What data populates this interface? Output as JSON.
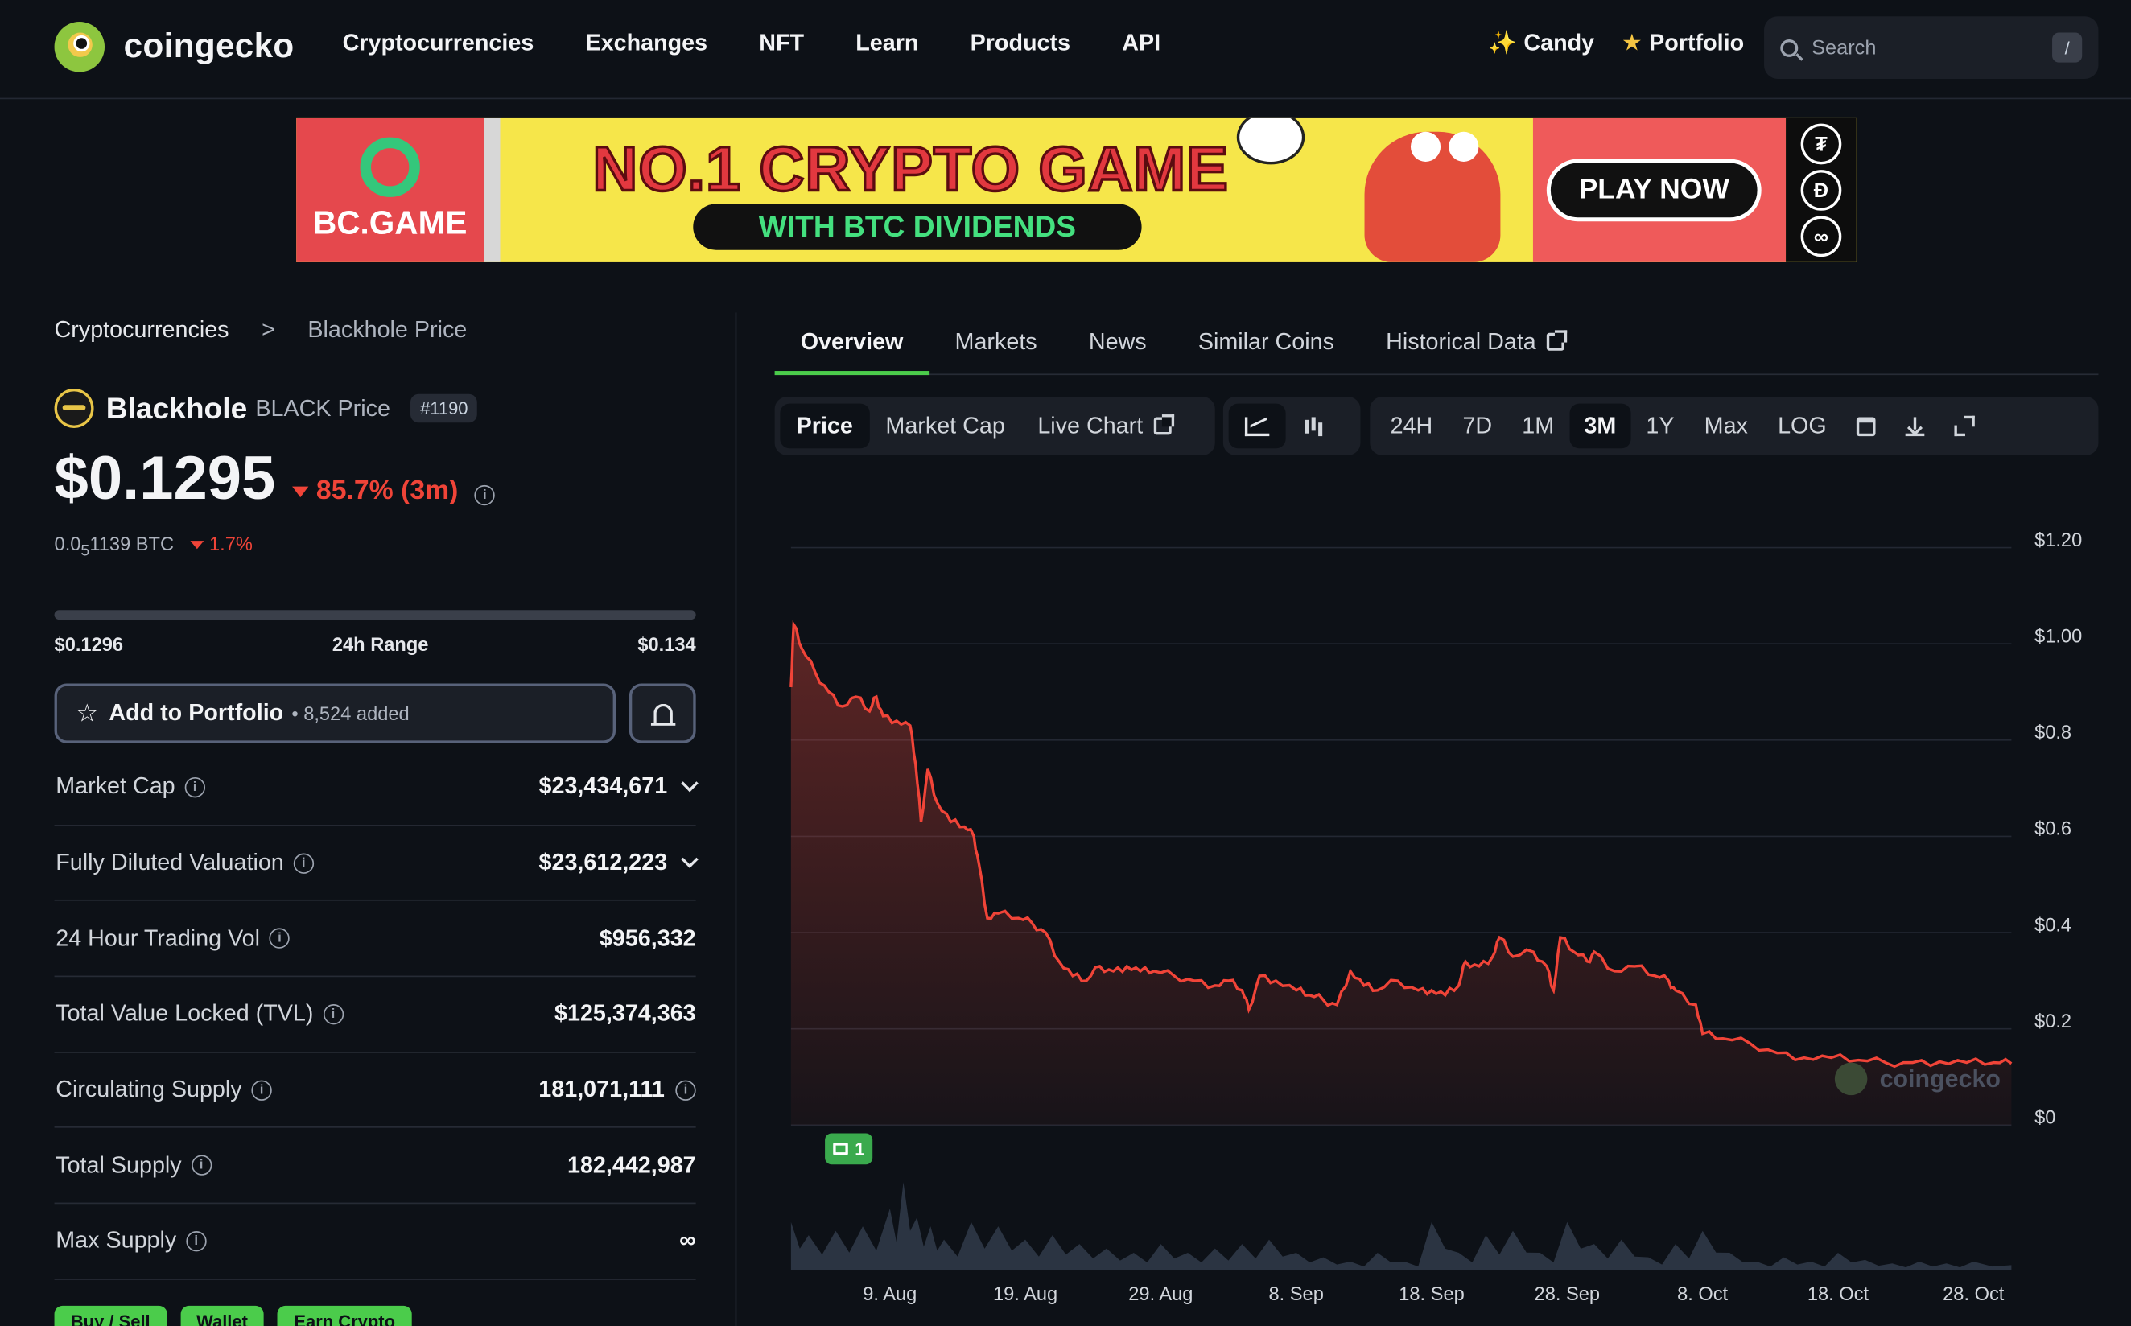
{
  "header": {
    "brand": "coingecko",
    "nav": [
      "Cryptocurrencies",
      "Exchanges",
      "NFT",
      "Learn",
      "Products",
      "API"
    ],
    "candy_label": "Candy",
    "portfolio_label": "Portfolio",
    "search_placeholder": "Search",
    "search_shortcut": "/"
  },
  "ad": {
    "brand": "BC.GAME",
    "headline": "NO.1 CRYPTO GAME",
    "subline": "WITH BTC DIVIDENDS",
    "cta": "PLAY NOW",
    "coin_glyphs": [
      "₮",
      "Đ",
      "∞"
    ]
  },
  "breadcrumb": {
    "root": "Cryptocurrencies",
    "separator": ">",
    "current": "Blackhole Price"
  },
  "coin": {
    "name": "Blackhole",
    "symbol_label": "BLACK Price",
    "rank": "#1190",
    "price": "$0.1295",
    "change": "85.7% (3m)",
    "btc_price_prefix": "0.0",
    "btc_price_sub": "5",
    "btc_price_suffix": "1139 BTC",
    "btc_change": "1.7%",
    "range_low": "$0.1296",
    "range_label": "24h Range",
    "range_high": "$0.134",
    "range_position": 0.0,
    "add_portfolio": "Add to Portfolio",
    "added_count": "• 8,524 added"
  },
  "stats": [
    {
      "label": "Market Cap",
      "value": "$23,434,671",
      "chevron": true,
      "info_after": false
    },
    {
      "label": "Fully Diluted Valuation",
      "value": "$23,612,223",
      "chevron": true,
      "info_after": false
    },
    {
      "label": "24 Hour Trading Vol",
      "value": "$956,332",
      "chevron": false,
      "info_after": false
    },
    {
      "label": "Total Value Locked (TVL)",
      "value": "$125,374,363",
      "chevron": false,
      "info_after": false
    },
    {
      "label": "Circulating Supply",
      "value": "181,071,111",
      "chevron": false,
      "info_after": true
    },
    {
      "label": "Total Supply",
      "value": "182,442,987",
      "chevron": false,
      "info_after": false
    },
    {
      "label": "Max Supply",
      "value": "∞",
      "chevron": false,
      "info_after": false
    }
  ],
  "green_pills": [
    "Buy / Sell",
    "Wallet",
    "Earn Crypto"
  ],
  "tabs": [
    "Overview",
    "Markets",
    "News",
    "Similar Coins",
    "Historical Data"
  ],
  "toolbar": {
    "modes": [
      "Price",
      "Market Cap",
      "Live Chart"
    ],
    "ranges": [
      "24H",
      "7D",
      "1M",
      "3M",
      "1Y",
      "Max",
      "LOG"
    ],
    "active_mode": "Price",
    "active_range": "3M"
  },
  "chart_data": {
    "type": "line",
    "y_ticks": [
      "$1.20",
      "$1.00",
      "$0.8",
      "$0.6",
      "$0.4",
      "$0.2",
      "$0"
    ],
    "ylim": [
      0,
      1.2
    ],
    "x_ticks": [
      "9. Aug",
      "19. Aug",
      "29. Aug",
      "8. Sep",
      "18. Sep",
      "28. Sep",
      "8. Oct",
      "18. Oct",
      "28. Oct"
    ],
    "x_days": [
      9,
      19,
      29,
      39,
      49,
      59,
      69,
      79,
      89
    ],
    "x_range_days": [
      1.7,
      91.8
    ],
    "watermark": "coingecko",
    "news_count": "1",
    "price_series": [
      [
        1.7,
        0.91
      ],
      [
        1.9,
        1.04
      ],
      [
        2.5,
        0.99
      ],
      [
        3.5,
        0.94
      ],
      [
        4.5,
        0.9
      ],
      [
        5.5,
        0.87
      ],
      [
        6.5,
        0.89
      ],
      [
        7.5,
        0.86
      ],
      [
        8.0,
        0.89
      ],
      [
        8.5,
        0.85
      ],
      [
        9.5,
        0.84
      ],
      [
        10.5,
        0.83
      ],
      [
        10.9,
        0.75
      ],
      [
        11.3,
        0.63
      ],
      [
        11.8,
        0.74
      ],
      [
        12.5,
        0.67
      ],
      [
        13.5,
        0.63
      ],
      [
        14.5,
        0.62
      ],
      [
        15.2,
        0.6
      ],
      [
        15.6,
        0.54
      ],
      [
        16.2,
        0.43
      ],
      [
        17.0,
        0.44
      ],
      [
        18.5,
        0.43
      ],
      [
        19.5,
        0.42
      ],
      [
        20.5,
        0.4
      ],
      [
        21.5,
        0.34
      ],
      [
        22.5,
        0.31
      ],
      [
        23.5,
        0.3
      ],
      [
        24.5,
        0.33
      ],
      [
        25.5,
        0.32
      ],
      [
        26.5,
        0.33
      ],
      [
        27.5,
        0.32
      ],
      [
        28.5,
        0.32
      ],
      [
        30.0,
        0.31
      ],
      [
        31.5,
        0.3
      ],
      [
        33.0,
        0.29
      ],
      [
        34.0,
        0.3
      ],
      [
        35.0,
        0.28
      ],
      [
        35.5,
        0.24
      ],
      [
        36.3,
        0.31
      ],
      [
        37.5,
        0.3
      ],
      [
        39.0,
        0.28
      ],
      [
        40.0,
        0.27
      ],
      [
        41.0,
        0.26
      ],
      [
        42.0,
        0.25
      ],
      [
        43.0,
        0.32
      ],
      [
        44.0,
        0.29
      ],
      [
        45.0,
        0.28
      ],
      [
        46.5,
        0.3
      ],
      [
        48.0,
        0.28
      ],
      [
        49.0,
        0.28
      ],
      [
        50.0,
        0.27
      ],
      [
        51.0,
        0.29
      ],
      [
        51.5,
        0.34
      ],
      [
        52.5,
        0.33
      ],
      [
        53.5,
        0.35
      ],
      [
        54.0,
        0.39
      ],
      [
        55.0,
        0.35
      ],
      [
        56.5,
        0.36
      ],
      [
        57.5,
        0.33
      ],
      [
        58.0,
        0.28
      ],
      [
        58.5,
        0.39
      ],
      [
        59.5,
        0.36
      ],
      [
        60.5,
        0.34
      ],
      [
        61.0,
        0.36
      ],
      [
        62.5,
        0.32
      ],
      [
        64.0,
        0.33
      ],
      [
        65.5,
        0.31
      ],
      [
        66.5,
        0.3
      ],
      [
        67.0,
        0.28
      ],
      [
        68.5,
        0.25
      ],
      [
        69.0,
        0.19
      ],
      [
        70.5,
        0.18
      ],
      [
        72.5,
        0.17
      ],
      [
        74.5,
        0.15
      ],
      [
        76.5,
        0.14
      ],
      [
        78.5,
        0.14
      ],
      [
        80.5,
        0.135
      ],
      [
        82.5,
        0.13
      ],
      [
        84.5,
        0.13
      ],
      [
        86.5,
        0.132
      ],
      [
        88.5,
        0.13
      ],
      [
        90.5,
        0.13
      ],
      [
        91.8,
        0.128
      ]
    ],
    "volume_series": [
      [
        1.7,
        0.55
      ],
      [
        3,
        0.4
      ],
      [
        5,
        0.45
      ],
      [
        7,
        0.5
      ],
      [
        9,
        0.7
      ],
      [
        10,
        1.0
      ],
      [
        11,
        0.6
      ],
      [
        12,
        0.5
      ],
      [
        13,
        0.35
      ],
      [
        15,
        0.55
      ],
      [
        17,
        0.5
      ],
      [
        19,
        0.35
      ],
      [
        21,
        0.4
      ],
      [
        23,
        0.3
      ],
      [
        25,
        0.25
      ],
      [
        27,
        0.2
      ],
      [
        29,
        0.3
      ],
      [
        31,
        0.2
      ],
      [
        33,
        0.25
      ],
      [
        35,
        0.3
      ],
      [
        37,
        0.35
      ],
      [
        39,
        0.2
      ],
      [
        41,
        0.15
      ],
      [
        43,
        0.1
      ],
      [
        45,
        0.2
      ],
      [
        47,
        0.1
      ],
      [
        49,
        0.55
      ],
      [
        51,
        0.2
      ],
      [
        53,
        0.4
      ],
      [
        55,
        0.45
      ],
      [
        57,
        0.2
      ],
      [
        59,
        0.55
      ],
      [
        61,
        0.3
      ],
      [
        63,
        0.35
      ],
      [
        65,
        0.15
      ],
      [
        67,
        0.3
      ],
      [
        69,
        0.45
      ],
      [
        71,
        0.2
      ],
      [
        73,
        0.1
      ],
      [
        75,
        0.15
      ],
      [
        77,
        0.1
      ],
      [
        79,
        0.2
      ],
      [
        81,
        0.12
      ],
      [
        83,
        0.08
      ],
      [
        85,
        0.1
      ],
      [
        87,
        0.08
      ],
      [
        89,
        0.1
      ],
      [
        91.8,
        0.06
      ]
    ]
  }
}
